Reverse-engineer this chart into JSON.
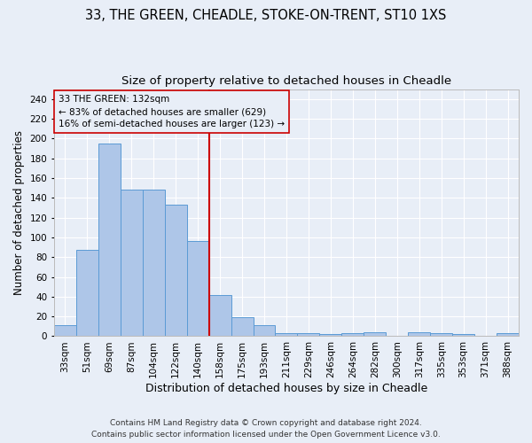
{
  "title_line1": "33, THE GREEN, CHEADLE, STOKE-ON-TRENT, ST10 1XS",
  "title_line2": "Size of property relative to detached houses in Cheadle",
  "xlabel": "Distribution of detached houses by size in Cheadle",
  "ylabel": "Number of detached properties",
  "footer_line1": "Contains HM Land Registry data © Crown copyright and database right 2024.",
  "footer_line2": "Contains public sector information licensed under the Open Government Licence v3.0.",
  "categories": [
    "33sqm",
    "51sqm",
    "69sqm",
    "87sqm",
    "104sqm",
    "122sqm",
    "140sqm",
    "158sqm",
    "175sqm",
    "193sqm",
    "211sqm",
    "229sqm",
    "246sqm",
    "264sqm",
    "282sqm",
    "300sqm",
    "317sqm",
    "335sqm",
    "353sqm",
    "371sqm",
    "388sqm"
  ],
  "values": [
    11,
    87,
    195,
    148,
    148,
    133,
    96,
    42,
    19,
    11,
    3,
    3,
    2,
    3,
    4,
    0,
    4,
    3,
    2,
    0,
    3
  ],
  "bar_color": "#aec6e8",
  "bar_edge_color": "#5b9bd5",
  "vline_x": 6.5,
  "annotation_title": "33 THE GREEN: 132sqm",
  "annotation_line2": "← 83% of detached houses are smaller (629)",
  "annotation_line3": "16% of semi-detached houses are larger (123) →",
  "vline_color": "#cc0000",
  "ylim": [
    0,
    250
  ],
  "yticks": [
    0,
    20,
    40,
    60,
    80,
    100,
    120,
    140,
    160,
    180,
    200,
    220,
    240
  ],
  "background_color": "#e8eef7",
  "grid_color": "#ffffff",
  "title_fontsize": 10.5,
  "subtitle_fontsize": 9.5,
  "xlabel_fontsize": 9,
  "ylabel_fontsize": 8.5,
  "tick_fontsize": 7.5,
  "annotation_fontsize": 7.5,
  "footer_fontsize": 6.5
}
